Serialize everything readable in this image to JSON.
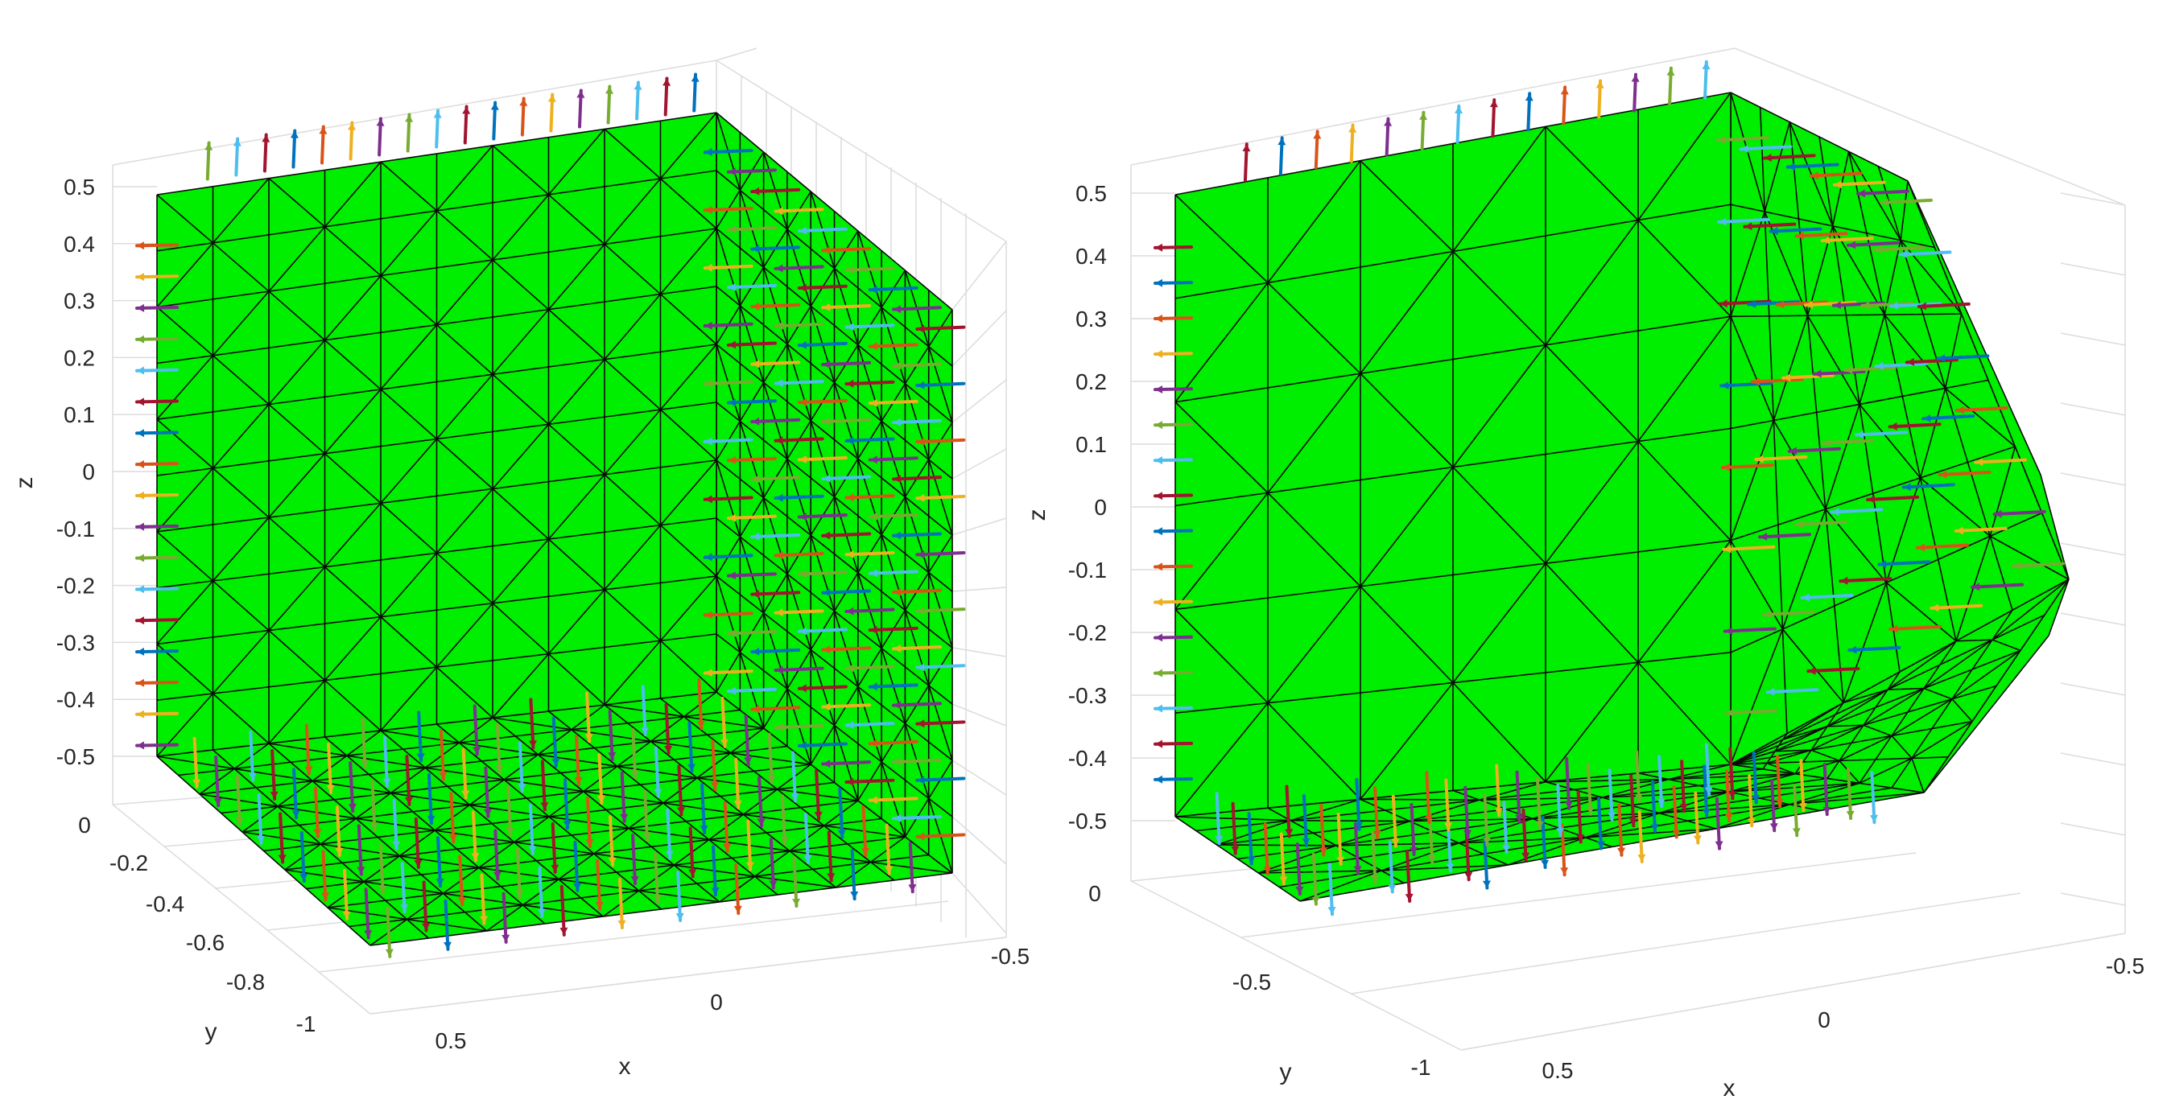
{
  "chart_data": [
    {
      "type": "3d-mesh-surface",
      "title": "",
      "xlabel": "x",
      "ylabel": "y",
      "zlabel": "z",
      "x_ticks": [
        "0.5",
        "0",
        "-0.5"
      ],
      "y_ticks": [
        "0",
        "-0.2",
        "-0.4",
        "-0.6",
        "-0.8",
        "-1"
      ],
      "z_ticks": [
        "0.5",
        "0.4",
        "0.3",
        "0.2",
        "0.1",
        "0",
        "-0.1",
        "-0.2",
        "-0.3",
        "-0.4",
        "-0.5"
      ],
      "xlim": [
        -0.5,
        0.5
      ],
      "ylim": [
        -1,
        0
      ],
      "zlim": [
        -0.5,
        0.5
      ],
      "surface_color": "#00ee00",
      "edge_color": "#000000",
      "grid": true,
      "mesh_divisions": 10,
      "shape": "cube",
      "normal_vectors": "on all visible faces"
    },
    {
      "type": "3d-mesh-surface",
      "title": "",
      "xlabel": "x",
      "ylabel": "y",
      "zlabel": "z",
      "x_ticks": [
        "0.5",
        "0",
        "-0.5"
      ],
      "y_ticks": [
        "0",
        "-0.5",
        "-1"
      ],
      "z_ticks": [
        "0.5",
        "0.4",
        "0.3",
        "0.2",
        "0.1",
        "0",
        "-0.1",
        "-0.2",
        "-0.3",
        "-0.4",
        "-0.5"
      ],
      "xlim": [
        -0.5,
        0.5
      ],
      "ylim": [
        -1,
        0
      ],
      "zlim": [
        -0.5,
        0.5
      ],
      "surface_color": "#00ee00",
      "edge_color": "#000000",
      "grid": true,
      "mesh_divisions": 6,
      "shape": "cube with chamfered corner",
      "normal_vectors": "on all visible faces"
    }
  ],
  "arrow_colors": [
    "#0072BD",
    "#D95319",
    "#EDB120",
    "#7E2F8E",
    "#77AC30",
    "#4DBEEE",
    "#A2142F"
  ]
}
